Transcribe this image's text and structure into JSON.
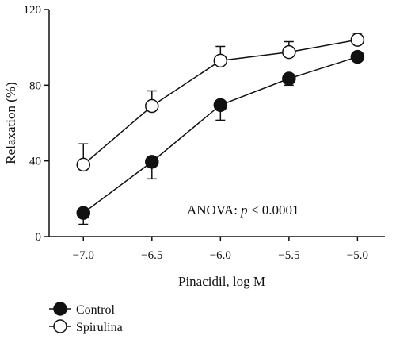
{
  "chart_data": {
    "type": "line",
    "xlabel": "Pinacidil, log M",
    "ylabel": "Relaxation (%)",
    "xlim": [
      -7.25,
      -4.8
    ],
    "ylim": [
      0,
      120
    ],
    "x": [
      -7.0,
      -6.5,
      -6.0,
      -5.5,
      -5.0
    ],
    "x_tick_labels": [
      "−7.0",
      "−6.5",
      "−6.0",
      "−5.5",
      "−5.0"
    ],
    "y_ticks": [
      0,
      40,
      80,
      120
    ],
    "y_tick_labels": [
      "0",
      "40",
      "80",
      "120"
    ],
    "series": [
      {
        "name": "Control",
        "marker": "filled-circle",
        "color": "#111111",
        "values": [
          12.5,
          39.5,
          69.5,
          83.5,
          95.0
        ],
        "error": [
          6.0,
          9.0,
          8.0,
          3.5,
          1.5
        ],
        "error_direction": "down"
      },
      {
        "name": "Spirulina",
        "marker": "open-circle",
        "color": "#111111",
        "values": [
          38.0,
          69.0,
          93.0,
          97.5,
          104.0
        ],
        "error": [
          11.0,
          8.0,
          7.5,
          5.5,
          3.5
        ],
        "error_direction": "up"
      }
    ],
    "annotation": {
      "text_prefix": "ANOVA: ",
      "text_italic": "p",
      "text_suffix": " < 0.0001"
    },
    "legend_position": "bottom-left"
  }
}
